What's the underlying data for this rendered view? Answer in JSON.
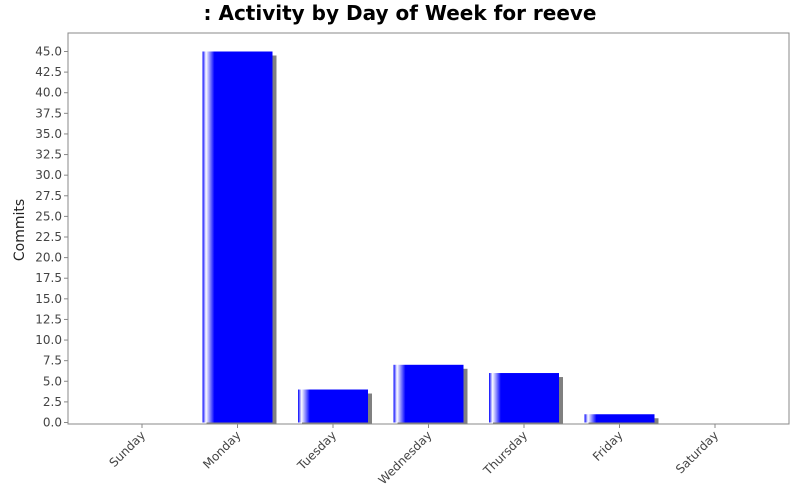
{
  "chart_data": {
    "type": "bar",
    "title": ": Activity by Day of Week for reeve",
    "xlabel": "",
    "ylabel": "Commits",
    "categories": [
      "Sunday",
      "Monday",
      "Tuesday",
      "Wednesday",
      "Thursday",
      "Friday",
      "Saturday"
    ],
    "values": [
      0,
      45,
      4,
      7,
      6,
      1,
      0
    ],
    "ylim": [
      0,
      47.5
    ],
    "yticks": [
      "0.0",
      "2.5",
      "5.0",
      "7.5",
      "10.0",
      "12.5",
      "15.0",
      "17.5",
      "20.0",
      "22.5",
      "25.0",
      "27.5",
      "30.0",
      "32.5",
      "35.0",
      "37.5",
      "40.0",
      "42.5",
      "45.0"
    ],
    "grid": false,
    "legend": "none",
    "colors": {
      "bar": "#0000ff",
      "bar_highlight": "#ffffff",
      "shadow": "#808080",
      "axis": "#888888"
    }
  }
}
